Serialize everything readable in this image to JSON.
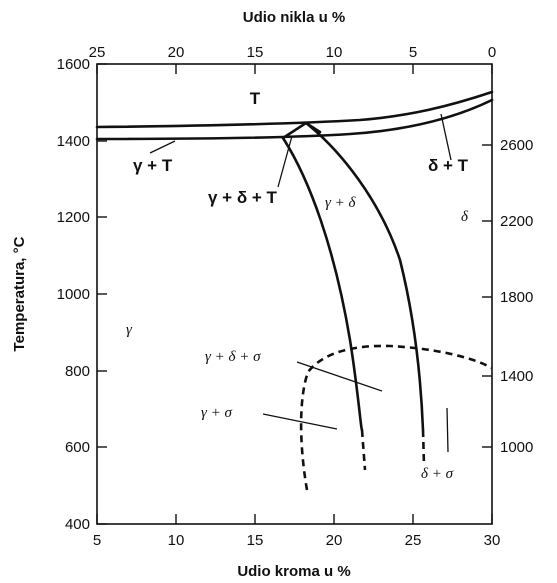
{
  "chart_data": {
    "type": "phase-diagram",
    "x_bottom": {
      "label": "Udio kroma u %",
      "range": [
        5,
        30
      ],
      "ticks": [
        "5",
        "10",
        "15",
        "20",
        "25",
        "30"
      ]
    },
    "x_top": {
      "label": "Udio nikla u %",
      "range": [
        25,
        0
      ],
      "ticks": [
        "25",
        "20",
        "15",
        "10",
        "5",
        "0"
      ]
    },
    "y_left": {
      "label": "Temperatura, °C",
      "range": [
        400,
        1600
      ],
      "ticks": [
        "400",
        "600",
        "800",
        "1000",
        "1200",
        "1400",
        "1600"
      ]
    },
    "y_right": {
      "ticks": [
        "1000",
        "1400",
        "1800",
        "2200",
        "2600"
      ]
    },
    "regions": {
      "liquid": "T",
      "gamma_liquid": "γ + T",
      "gamma_delta_liquid": "γ + δ + T",
      "gamma_delta": "γ + δ",
      "delta_liquid": "δ + T",
      "delta": "δ",
      "gamma": "γ",
      "gamma_delta_sigma": "γ + δ + σ",
      "gamma_sigma": "γ + σ",
      "delta_sigma": "δ + σ"
    },
    "boundaries": {
      "liquidus": [
        [
          5,
          1460
        ],
        [
          10,
          1462
        ],
        [
          15,
          1468
        ],
        [
          20,
          1478
        ],
        [
          25,
          1500
        ],
        [
          30,
          1550
        ]
      ],
      "solidus": [
        [
          5,
          1430
        ],
        [
          10,
          1430
        ],
        [
          15,
          1432
        ],
        [
          20,
          1440
        ],
        [
          25,
          1460
        ],
        [
          30,
          1520
        ]
      ],
      "peritectic_left": [
        [
          17.3,
          1430
        ],
        [
          18.5,
          1390
        ],
        [
          19.8,
          1250
        ],
        [
          21.0,
          1020
        ],
        [
          21.8,
          820
        ],
        [
          22.2,
          620
        ]
      ],
      "peritectic_right": [
        [
          19.2,
          1462
        ],
        [
          21.5,
          1380
        ],
        [
          24.0,
          1150
        ],
        [
          25.4,
          900
        ],
        [
          25.8,
          650
        ]
      ],
      "sigma_solvus": [
        [
          18.5,
          480
        ],
        [
          18.3,
          620
        ],
        [
          18.5,
          780
        ],
        [
          20.0,
          850
        ],
        [
          22.5,
          865
        ],
        [
          25.0,
          862
        ],
        [
          28.0,
          840
        ],
        [
          30.0,
          800
        ]
      ],
      "gamma_delta_solvus_lower": [
        [
          22.2,
          620
        ],
        [
          22.2,
          550
        ]
      ],
      "delta_solvus_lower": [
        [
          25.8,
          650
        ],
        [
          25.9,
          550
        ]
      ]
    }
  }
}
